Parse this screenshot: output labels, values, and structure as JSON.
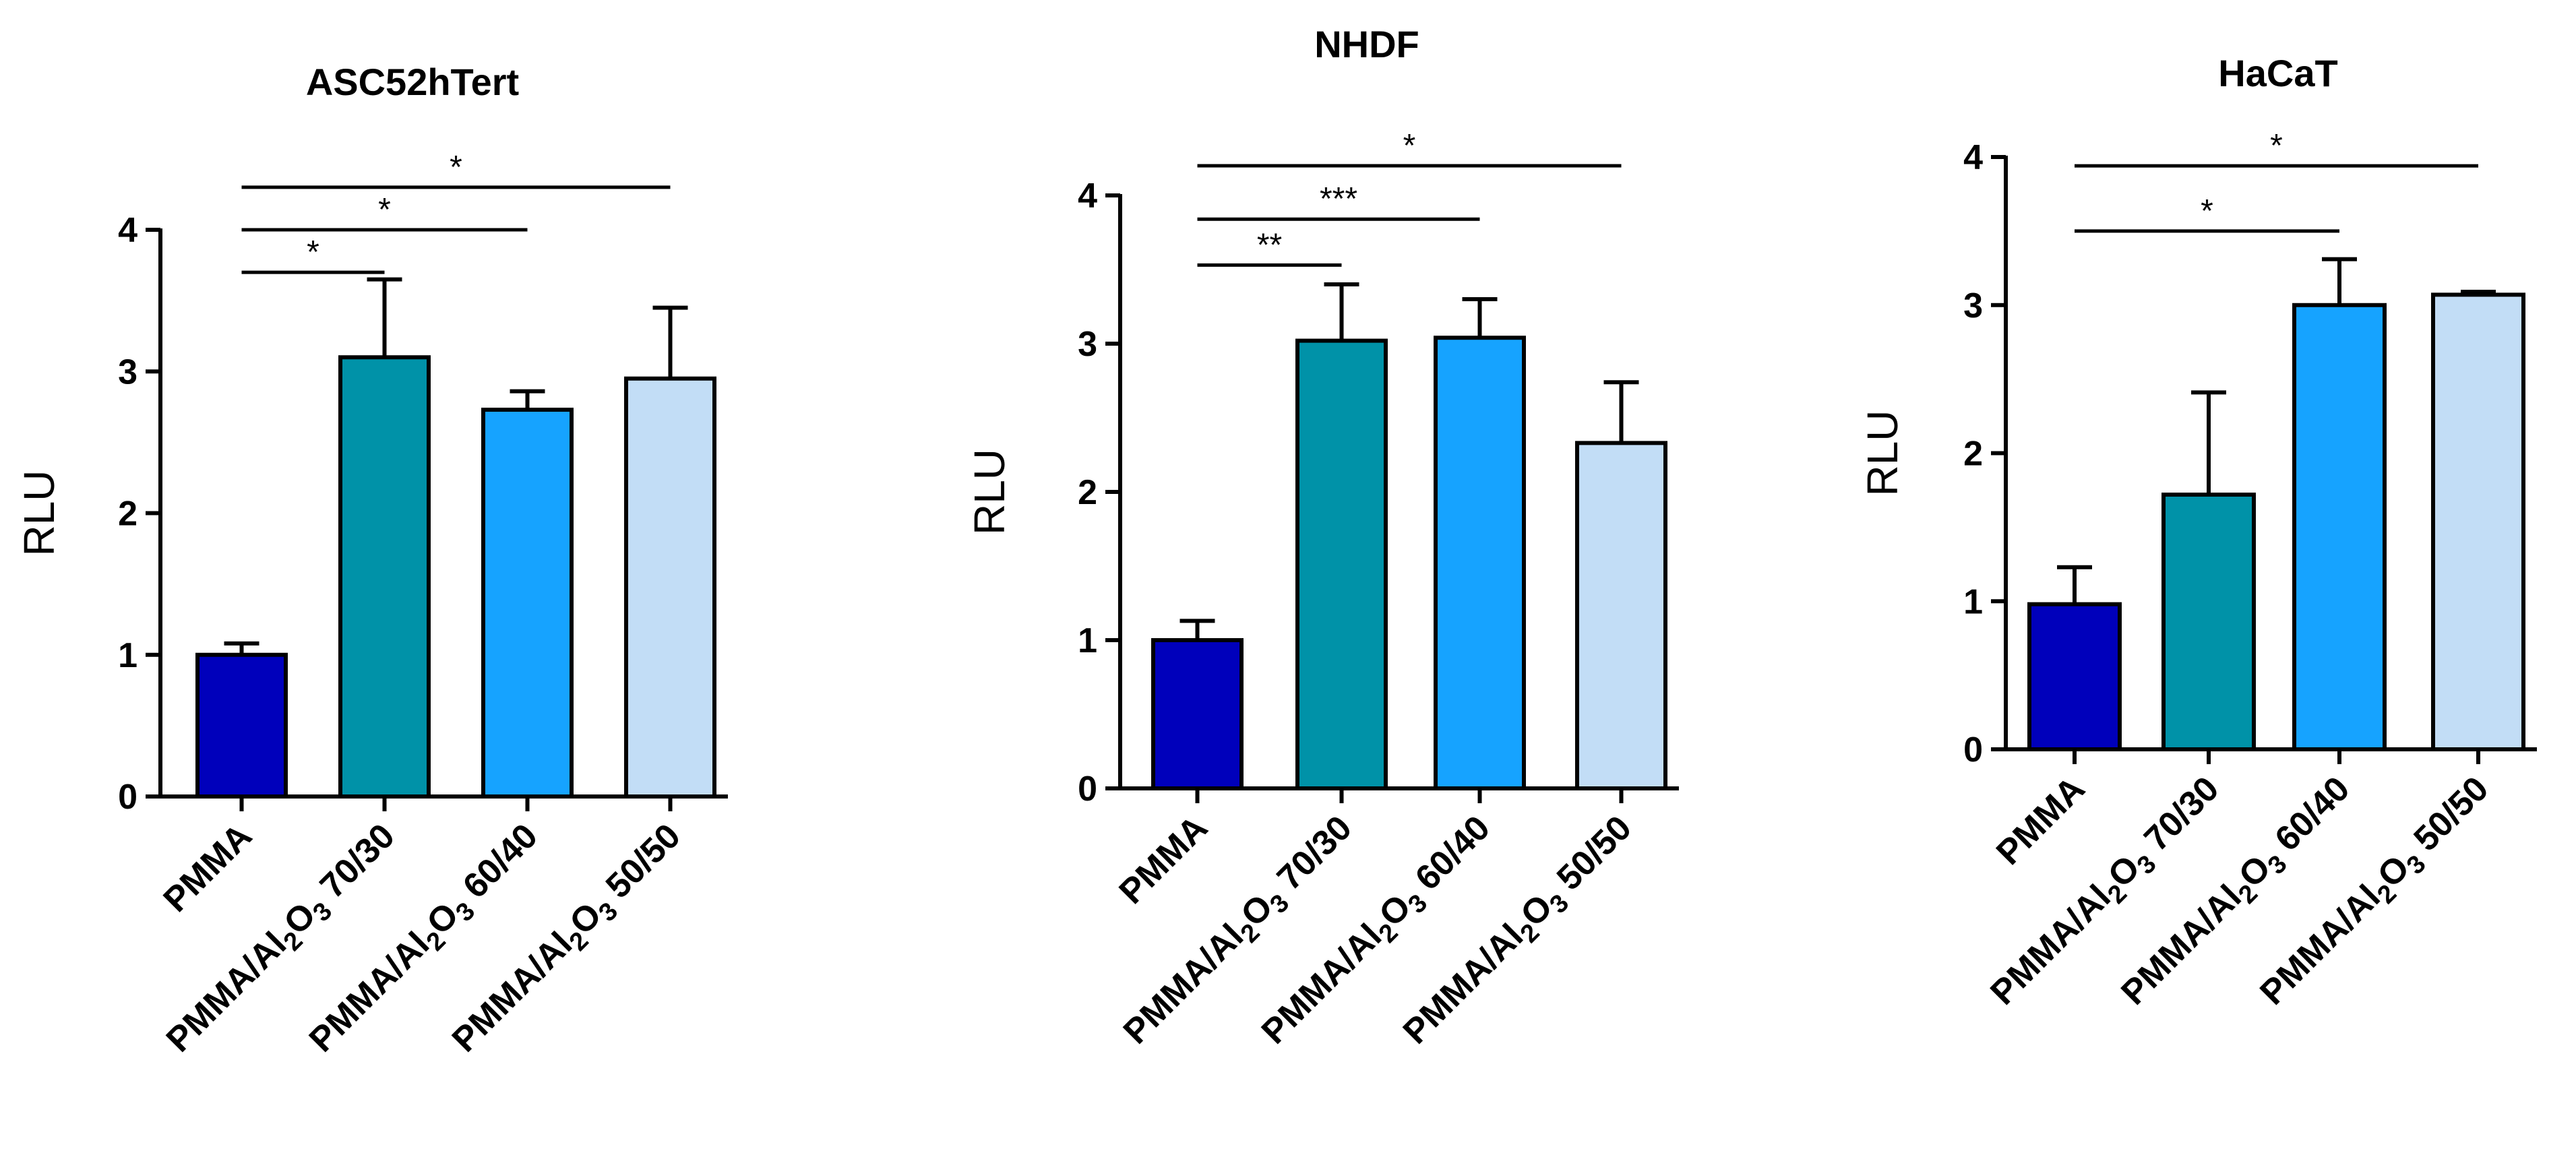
{
  "chart_data": [
    {
      "type": "bar",
      "title": "ASC52hTert",
      "ylabel": "RLU",
      "xlabel": "",
      "ylim": [
        0,
        4
      ],
      "yticks": [
        0,
        1,
        2,
        3,
        4
      ],
      "categories": [
        {
          "main": "PMMA",
          "parts": []
        },
        {
          "main": "PMMA/Al2O3 70/30",
          "parts": [
            {
              "t": "PMMA/Al",
              "sub": false
            },
            {
              "t": "2",
              "sub": true
            },
            {
              "t": "O",
              "sub": false
            },
            {
              "t": "3",
              "sub": true
            },
            {
              "t": " 70/30",
              "sub": false
            }
          ]
        },
        {
          "main": "PMMA/Al2O3 60/40",
          "parts": [
            {
              "t": "PMMA/Al",
              "sub": false
            },
            {
              "t": "2",
              "sub": true
            },
            {
              "t": "O",
              "sub": false
            },
            {
              "t": "3",
              "sub": true
            },
            {
              "t": " 60/40",
              "sub": false
            }
          ]
        },
        {
          "main": "PMMA/Al2O3 50/50",
          "parts": [
            {
              "t": "PMMA/Al",
              "sub": false
            },
            {
              "t": "2",
              "sub": true
            },
            {
              "t": "O",
              "sub": false
            },
            {
              "t": "3",
              "sub": true
            },
            {
              "t": " 50/50",
              "sub": false
            }
          ]
        }
      ],
      "values": [
        1.0,
        3.1,
        2.73,
        2.95
      ],
      "errors": [
        0.08,
        0.55,
        0.13,
        0.5
      ],
      "colors": [
        "#0000bb",
        "#0092a8",
        "#16a3ff",
        "#c2ddf6"
      ],
      "significance": [
        {
          "from": 0,
          "to": 1,
          "label": "*",
          "y": 3.7
        },
        {
          "from": 0,
          "to": 2,
          "label": "*",
          "y": 4.0
        },
        {
          "from": 0,
          "to": 3,
          "label": "*",
          "y": 4.3
        }
      ]
    },
    {
      "type": "bar",
      "title": "NHDF",
      "ylabel": "RLU",
      "xlabel": "",
      "ylim": [
        0,
        4
      ],
      "yticks": [
        0,
        1,
        2,
        3,
        4
      ],
      "categories": [
        {
          "main": "PMMA",
          "parts": []
        },
        {
          "main": "PMMA/Al2O3 70/30",
          "parts": [
            {
              "t": "PMMA/Al",
              "sub": false
            },
            {
              "t": "2",
              "sub": true
            },
            {
              "t": "O",
              "sub": false
            },
            {
              "t": "3",
              "sub": true
            },
            {
              "t": " 70/30",
              "sub": false
            }
          ]
        },
        {
          "main": "PMMA/Al2O3 60/40",
          "parts": [
            {
              "t": "PMMA/Al",
              "sub": false
            },
            {
              "t": "2",
              "sub": true
            },
            {
              "t": "O",
              "sub": false
            },
            {
              "t": "3",
              "sub": true
            },
            {
              "t": " 60/40",
              "sub": false
            }
          ]
        },
        {
          "main": "PMMA/Al2O3 50/50",
          "parts": [
            {
              "t": "PMMA/Al",
              "sub": false
            },
            {
              "t": "2",
              "sub": true
            },
            {
              "t": "O",
              "sub": false
            },
            {
              "t": "3",
              "sub": true
            },
            {
              "t": " 50/50",
              "sub": false
            }
          ]
        }
      ],
      "values": [
        1.0,
        3.02,
        3.04,
        2.33
      ],
      "errors": [
        0.13,
        0.38,
        0.26,
        0.41
      ],
      "colors": [
        "#0000bb",
        "#0092a8",
        "#16a3ff",
        "#c2ddf6"
      ],
      "significance": [
        {
          "from": 0,
          "to": 1,
          "label": "**",
          "y": 3.53
        },
        {
          "from": 0,
          "to": 2,
          "label": "***",
          "y": 3.84
        },
        {
          "from": 0,
          "to": 3,
          "label": "*",
          "y": 4.2
        }
      ]
    },
    {
      "type": "bar",
      "title": "HaCaT",
      "ylabel": "RLU",
      "xlabel": "",
      "ylim": [
        0,
        4
      ],
      "yticks": [
        0,
        1,
        2,
        3,
        4
      ],
      "categories": [
        {
          "main": "PMMA",
          "parts": []
        },
        {
          "main": "PMMA/Al2O3 70/30",
          "parts": [
            {
              "t": "PMMA/Al",
              "sub": false
            },
            {
              "t": "2",
              "sub": true
            },
            {
              "t": "O",
              "sub": false
            },
            {
              "t": "3",
              "sub": true
            },
            {
              "t": " 70/30",
              "sub": false
            }
          ]
        },
        {
          "main": "PMMA/Al2O3 60/40",
          "parts": [
            {
              "t": "PMMA/Al",
              "sub": false
            },
            {
              "t": "2",
              "sub": true
            },
            {
              "t": "O",
              "sub": false
            },
            {
              "t": "3",
              "sub": true
            },
            {
              "t": " 60/40",
              "sub": false
            }
          ]
        },
        {
          "main": "PMMA/Al2O3 50/50",
          "parts": [
            {
              "t": "PMMA/Al",
              "sub": false
            },
            {
              "t": "2",
              "sub": true
            },
            {
              "t": "O",
              "sub": false
            },
            {
              "t": "3",
              "sub": true
            },
            {
              "t": " 50/50",
              "sub": false
            }
          ]
        }
      ],
      "values": [
        0.98,
        1.72,
        3.0,
        3.07
      ],
      "errors": [
        0.25,
        0.69,
        0.31,
        0.02
      ],
      "colors": [
        "#0000bb",
        "#0092a8",
        "#16a3ff",
        "#c2ddf6"
      ],
      "significance": [
        {
          "from": 0,
          "to": 2,
          "label": "*",
          "y": 3.5
        },
        {
          "from": 0,
          "to": 3,
          "label": "*",
          "y": 3.94
        }
      ]
    }
  ]
}
